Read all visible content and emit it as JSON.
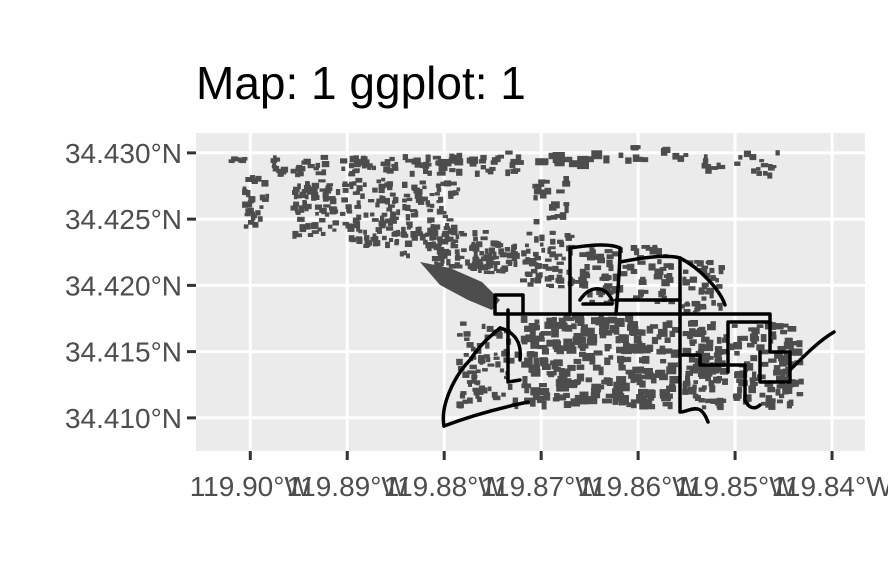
{
  "figure": {
    "title": "Map: 1  ggplot: 1"
  },
  "chart_data": {
    "type": "map",
    "title": "Map: 1  ggplot: 1",
    "xlabel": "",
    "ylabel": "",
    "x_ticks": [
      {
        "value": -119.9,
        "label": "119.90°W"
      },
      {
        "value": -119.89,
        "label": "119.89°W"
      },
      {
        "value": -119.88,
        "label": "119.88°W"
      },
      {
        "value": -119.87,
        "label": "119.87°W"
      },
      {
        "value": -119.86,
        "label": "119.86°W"
      },
      {
        "value": -119.85,
        "label": "119.85°W"
      },
      {
        "value": -119.84,
        "label": "119.84°W"
      }
    ],
    "y_ticks": [
      {
        "value": 34.43,
        "label": "34.430°N"
      },
      {
        "value": 34.425,
        "label": "34.425°N"
      },
      {
        "value": 34.42,
        "label": "34.420°N"
      },
      {
        "value": 34.415,
        "label": "34.415°N"
      },
      {
        "value": 34.41,
        "label": "34.410°N"
      }
    ],
    "xlim": [
      -119.9056,
      -119.8366
    ],
    "ylim": [
      34.4075,
      34.4315
    ],
    "grid": true,
    "colors": {
      "panel": "#ebebeb",
      "grid_major": "#ffffff",
      "buildings": "#4d4d4d",
      "roads": "#000000"
    },
    "layers": [
      {
        "name": "buildings",
        "geometry": "polygon"
      },
      {
        "name": "roads",
        "geometry": "line"
      }
    ]
  }
}
